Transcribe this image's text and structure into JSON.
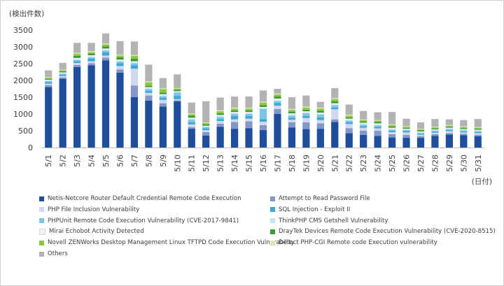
{
  "chart_data": {
    "type": "bar",
    "stacked": true,
    "title": "",
    "ylabel": "(検出件数)",
    "xlabel": "(日付)",
    "ylim": [
      0,
      3500
    ],
    "yticks": [
      0,
      500,
      1000,
      1500,
      2000,
      2500,
      3000,
      3500
    ],
    "grid": false,
    "legend_position": "bottom",
    "categories": [
      "5/1",
      "5/2",
      "5/3",
      "5/4",
      "5/5",
      "5/6",
      "5/7",
      "5/8",
      "5/9",
      "5/10",
      "5/11",
      "5/12",
      "5/13",
      "5/14",
      "5/15",
      "5/16",
      "5/17",
      "5/18",
      "5/19",
      "5/20",
      "5/21",
      "5/22",
      "5/23",
      "5/24",
      "5/25",
      "5/26",
      "5/27",
      "5/28",
      "5/29",
      "5/30",
      "5/31"
    ],
    "series": [
      {
        "name": "Netis-Netcore Router Default Credential Remote Code Execution",
        "color": "#1f4e9c",
        "values": [
          1800,
          2050,
          2400,
          2450,
          2600,
          2230,
          1500,
          1400,
          1220,
          1380,
          560,
          360,
          620,
          560,
          580,
          520,
          1000,
          600,
          550,
          560,
          760,
          430,
          380,
          350,
          300,
          290,
          290,
          350,
          390,
          370,
          340
        ]
      },
      {
        "name": "Attempt to Read Password File",
        "color": "#8497c9",
        "values": [
          60,
          40,
          60,
          60,
          80,
          100,
          350,
          150,
          100,
          30,
          50,
          100,
          90,
          200,
          200,
          150,
          150,
          150,
          200,
          160,
          80,
          150,
          120,
          150,
          100,
          90,
          50,
          50,
          40,
          40,
          40
        ]
      },
      {
        "name": "PHP File Inclusion Vulnerability",
        "color": "#d0d8ef",
        "values": [
          40,
          40,
          60,
          60,
          60,
          100,
          500,
          80,
          100,
          30,
          80,
          60,
          80,
          80,
          80,
          100,
          100,
          80,
          130,
          100,
          300,
          120,
          90,
          70,
          60,
          70,
          40,
          40,
          60,
          40,
          50
        ]
      },
      {
        "name": "SQL Injection - Exploit II",
        "color": "#3fa7d6",
        "values": [
          50,
          40,
          50,
          80,
          100,
          80,
          100,
          60,
          60,
          100,
          60,
          50,
          60,
          100,
          80,
          80,
          80,
          60,
          60,
          80,
          50,
          50,
          50,
          50,
          40,
          40,
          30,
          30,
          30,
          30,
          30
        ]
      },
      {
        "name": "PHPUnit Remote Code Execution Vulnerability (CVE-2017-9841)",
        "color": "#7cc4e8",
        "values": [
          30,
          30,
          40,
          40,
          50,
          50,
          60,
          50,
          50,
          100,
          80,
          40,
          60,
          60,
          60,
          300,
          50,
          60,
          80,
          80,
          70,
          50,
          40,
          40,
          30,
          30,
          30,
          30,
          30,
          30,
          30
        ]
      },
      {
        "name": "ThinkPHP CMS Getshell Vulnerability",
        "color": "#c5e4f3",
        "values": [
          20,
          20,
          30,
          30,
          30,
          30,
          30,
          30,
          30,
          20,
          30,
          20,
          30,
          30,
          30,
          30,
          40,
          40,
          30,
          30,
          30,
          30,
          30,
          30,
          30,
          20,
          20,
          20,
          20,
          20,
          20
        ]
      },
      {
        "name": "Mirai Echobot Activity Detected",
        "color": "#f2f2f2",
        "values": [
          20,
          20,
          30,
          30,
          30,
          30,
          30,
          30,
          30,
          20,
          30,
          20,
          30,
          30,
          30,
          30,
          40,
          30,
          30,
          30,
          30,
          30,
          30,
          30,
          30,
          20,
          20,
          20,
          20,
          20,
          20
        ]
      },
      {
        "name": "DrayTek Devices Remote Code Execution Vulnerability (CVE-2020-8515)",
        "color": "#3d9b35",
        "values": [
          30,
          30,
          60,
          50,
          60,
          70,
          80,
          40,
          50,
          40,
          60,
          40,
          50,
          50,
          50,
          50,
          60,
          50,
          50,
          60,
          60,
          40,
          40,
          40,
          40,
          30,
          30,
          30,
          30,
          30,
          30
        ]
      },
      {
        "name": "Novell ZENWorks Desktop Management Linux TFTPD Code Execution Vulnerability",
        "color": "#8dc63f",
        "values": [
          30,
          30,
          60,
          40,
          60,
          50,
          80,
          100,
          100,
          30,
          40,
          40,
          60,
          50,
          50,
          80,
          60,
          50,
          60,
          60,
          60,
          50,
          40,
          40,
          40,
          30,
          30,
          30,
          30,
          30,
          30
        ]
      },
      {
        "name": "Detect PHP-CGI Remote code Execution vulnerability",
        "color": "#d3e8b3",
        "values": [
          20,
          20,
          30,
          30,
          30,
          30,
          30,
          30,
          30,
          20,
          30,
          20,
          30,
          30,
          30,
          30,
          30,
          30,
          30,
          30,
          30,
          30,
          20,
          20,
          20,
          20,
          20,
          20,
          20,
          20,
          20
        ]
      },
      {
        "name": "Others",
        "color": "#b3b3b3",
        "values": [
          200,
          200,
          300,
          250,
          300,
          400,
          400,
          500,
          300,
          410,
          320,
          630,
          380,
          330,
          330,
          330,
          140,
          350,
          330,
          170,
          300,
          300,
          250,
          230,
          370,
          220,
          190,
          230,
          170,
          190,
          240
        ]
      }
    ]
  }
}
